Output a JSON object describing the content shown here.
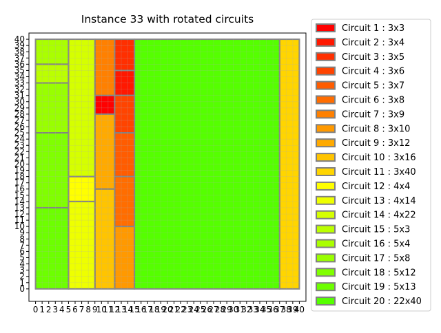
{
  "chart_data": {
    "type": "rectangle-packing",
    "title": "Instance 33 with rotated circuits",
    "xlabel": "",
    "ylabel": "",
    "xlim": [
      -1,
      41
    ],
    "ylim": [
      -2,
      41
    ],
    "grid": true,
    "legend_position": "right",
    "x_ticks": [
      0,
      1,
      2,
      3,
      4,
      5,
      6,
      7,
      8,
      9,
      10,
      11,
      12,
      13,
      14,
      15,
      16,
      17,
      18,
      19,
      20,
      21,
      22,
      23,
      24,
      25,
      26,
      27,
      28,
      29,
      30,
      31,
      32,
      33,
      34,
      35,
      36,
      37,
      38,
      39,
      40
    ],
    "y_ticks": [
      0,
      1,
      2,
      3,
      4,
      5,
      6,
      7,
      8,
      9,
      10,
      11,
      12,
      13,
      14,
      15,
      16,
      17,
      18,
      19,
      20,
      21,
      22,
      23,
      24,
      25,
      26,
      27,
      28,
      29,
      30,
      31,
      32,
      33,
      34,
      35,
      36,
      37,
      38,
      39,
      40
    ],
    "circuits": [
      {
        "label": "Circuit 1 : 3x3",
        "color": "#ff0000",
        "x": 9,
        "y": 28,
        "w": 3,
        "h": 3
      },
      {
        "label": "Circuit 2 : 3x4",
        "color": "#ff1800",
        "x": 12,
        "y": 31,
        "w": 3,
        "h": 4
      },
      {
        "label": "Circuit 3 : 3x5",
        "color": "#ff2f00",
        "x": 12,
        "y": 35,
        "w": 3,
        "h": 5
      },
      {
        "label": "Circuit 4 : 3x6",
        "color": "#ff4400",
        "x": 12,
        "y": 25,
        "w": 3,
        "h": 6
      },
      {
        "label": "Circuit 5 : 3x7",
        "color": "#ff5c00",
        "x": 12,
        "y": 18,
        "w": 3,
        "h": 7
      },
      {
        "label": "Circuit 6 : 3x8",
        "color": "#ff6d00",
        "x": 12,
        "y": 10,
        "w": 3,
        "h": 8
      },
      {
        "label": "Circuit 7 : 3x9",
        "color": "#ff8000",
        "x": 9,
        "y": 31,
        "w": 3,
        "h": 9
      },
      {
        "label": "Circuit 8 : 3x10",
        "color": "#ff9900",
        "x": 12,
        "y": 0,
        "w": 3,
        "h": 10
      },
      {
        "label": "Circuit 9 : 3x12",
        "color": "#ffaa00",
        "x": 9,
        "y": 16,
        "w": 3,
        "h": 12
      },
      {
        "label": "Circuit 10 : 3x16",
        "color": "#ffc400",
        "x": 9,
        "y": 0,
        "w": 3,
        "h": 16
      },
      {
        "label": "Circuit 11 : 3x40",
        "color": "#ffd500",
        "x": 37,
        "y": 0,
        "w": 3,
        "h": 40
      },
      {
        "label": "Circuit 12 : 4x4",
        "color": "#ffff00",
        "x": 5,
        "y": 14,
        "w": 4,
        "h": 4
      },
      {
        "label": "Circuit 13 : 4x14",
        "color": "#eeff00",
        "x": 5,
        "y": 0,
        "w": 4,
        "h": 14
      },
      {
        "label": "Circuit 14 : 4x22",
        "color": "#d5ff00",
        "x": 5,
        "y": 18,
        "w": 4,
        "h": 22
      },
      {
        "label": "Circuit 15 : 5x3",
        "color": "#bbff00",
        "x": 0,
        "y": 33,
        "w": 5,
        "h": 3
      },
      {
        "label": "Circuit 16 : 5x4",
        "color": "#aaff00",
        "x": 0,
        "y": 36,
        "w": 5,
        "h": 4
      },
      {
        "label": "Circuit 17 : 5x8",
        "color": "#99ff00",
        "x": 0,
        "y": 25,
        "w": 5,
        "h": 8
      },
      {
        "label": "Circuit 18 : 5x12",
        "color": "#80ff00",
        "x": 0,
        "y": 13,
        "w": 5,
        "h": 12
      },
      {
        "label": "Circuit 19 : 5x13",
        "color": "#6dff00",
        "x": 0,
        "y": 0,
        "w": 5,
        "h": 13
      },
      {
        "label": "Circuit 20 : 22x40",
        "color": "#55ff00",
        "x": 15,
        "y": 0,
        "w": 22,
        "h": 40
      }
    ]
  }
}
